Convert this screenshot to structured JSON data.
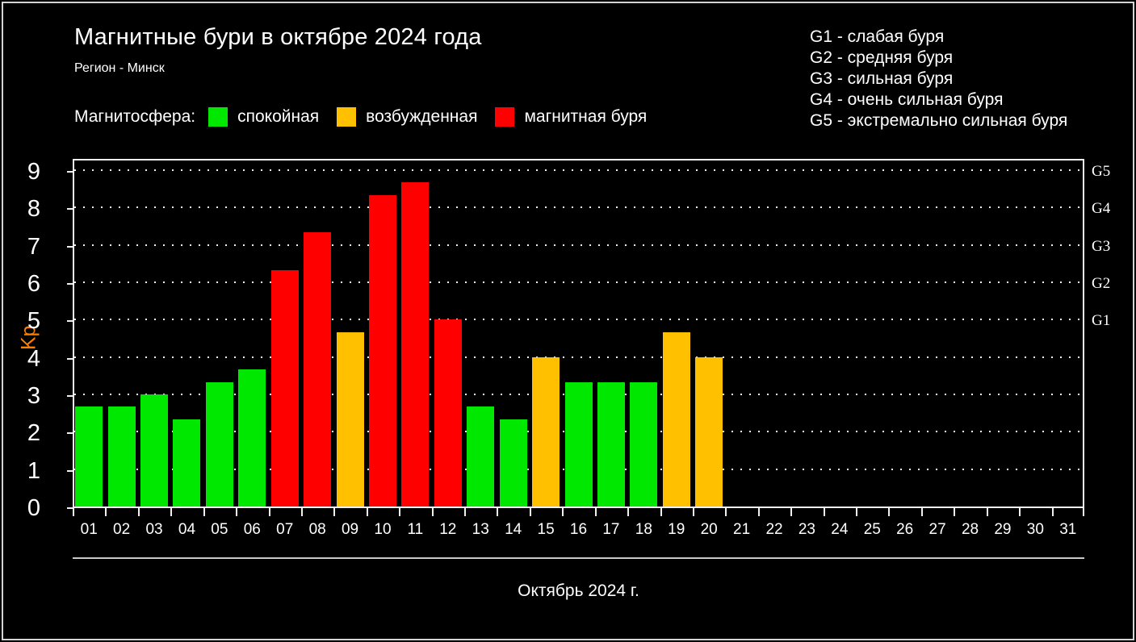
{
  "header": {
    "title": "Магнитные бури в октябре 2024 года",
    "subtitle": "Регион - Минск"
  },
  "storm_scale_legend": {
    "items": [
      "G1 - слабая буря",
      "G2 - средняя буря",
      "G3 - сильная буря",
      "G4 - очень сильная буря",
      "G5 - экстремально сильная буря"
    ]
  },
  "magnetosphere_legend": {
    "title": "Магнитосфера:",
    "items": [
      {
        "label": "спокойная",
        "level": "quiet",
        "color": "#00e800"
      },
      {
        "label": "возбужденная",
        "level": "excited",
        "color": "#ffc000"
      },
      {
        "label": "магнитная буря",
        "level": "storm",
        "color": "#ff0000"
      }
    ]
  },
  "chart_data": {
    "type": "bar",
    "title": "Магнитные бури в октябре 2024 года",
    "region": "Минск",
    "xlabel": "Октябрь 2024 г.",
    "ylabel": "Kp",
    "ylabel_color": "#ff8000",
    "ylim": [
      0,
      9.35
    ],
    "yticks": [
      0,
      1,
      2,
      3,
      4,
      5,
      6,
      7,
      8,
      9
    ],
    "grid": "horizontal dotted lines at Kp 1-9",
    "legend_position": "top-left",
    "categories": [
      "01",
      "02",
      "03",
      "04",
      "05",
      "06",
      "07",
      "08",
      "09",
      "10",
      "11",
      "12",
      "13",
      "14",
      "15",
      "16",
      "17",
      "18",
      "19",
      "20",
      "21",
      "22",
      "23",
      "24",
      "25",
      "26",
      "27",
      "28",
      "29",
      "30",
      "31"
    ],
    "values": [
      2.67,
      2.67,
      3.0,
      2.33,
      3.33,
      3.67,
      6.33,
      7.33,
      4.67,
      8.33,
      8.67,
      5.0,
      2.67,
      2.33,
      4.0,
      3.33,
      3.33,
      3.33,
      4.67,
      4.0,
      null,
      null,
      null,
      null,
      null,
      null,
      null,
      null,
      null,
      null,
      null
    ],
    "levels": [
      "quiet",
      "quiet",
      "quiet",
      "quiet",
      "quiet",
      "quiet",
      "storm",
      "storm",
      "excited",
      "storm",
      "storm",
      "storm",
      "quiet",
      "quiet",
      "excited",
      "quiet",
      "quiet",
      "quiet",
      "excited",
      "excited",
      null,
      null,
      null,
      null,
      null,
      null,
      null,
      null,
      null,
      null,
      null
    ],
    "level_colors": {
      "quiet": "#00e800",
      "excited": "#ffc000",
      "storm": "#ff0000"
    },
    "right_axis": {
      "labels": [
        "G1",
        "G2",
        "G3",
        "G4",
        "G5"
      ],
      "kp_positions": [
        5,
        6,
        7,
        8,
        9
      ]
    }
  }
}
